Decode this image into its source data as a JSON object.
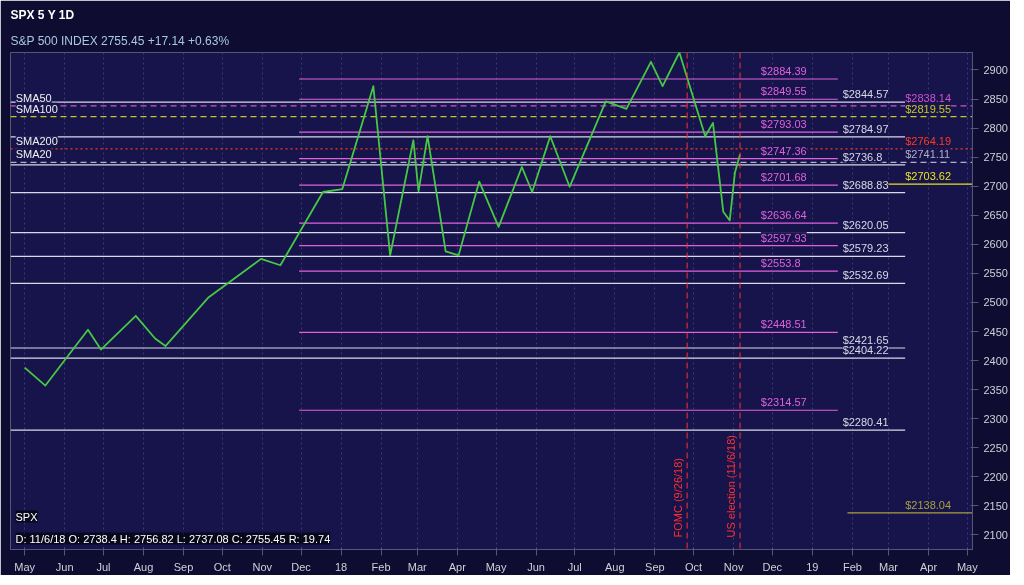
{
  "chart_data": {
    "type": "line",
    "title": "SPX 5 Y 1D",
    "subtitle": "S&P 500 INDEX  2755.45  +17.14  +0.63%",
    "annotations": [
      "D: 11/6/18 O: 2738.4 H: 2756.82 L: 2737.08 C: 2755.45 R: 19.74",
      {
        "text": "SMA50",
        "x": "2017-04-24",
        "y": 2838.14
      },
      {
        "text": "SMA100",
        "x": "2017-04-24",
        "y": 2819.55
      },
      {
        "text": "SMA200",
        "x": "2017-04-24",
        "y": 2764.19
      },
      {
        "text": "SMA20",
        "x": "2017-04-24",
        "y": 2741.11
      },
      "SPX"
    ],
    "series": [
      {
        "name": null,
        "color": "#46c846",
        "x": [
          "2017-05-01",
          "2017-05-17",
          "2017-06-19",
          "2017-06-29",
          "2017-07-26",
          "2017-08-10",
          "2017-08-18",
          "2017-09-20",
          "2017-10-31",
          "2017-11-15",
          "2017-12-18",
          "2018-01-02",
          "2018-01-26",
          "2018-02-08",
          "2018-02-26",
          "2018-03-02",
          "2018-03-09",
          "2018-03-23",
          "2018-04-02",
          "2018-04-18",
          "2018-05-03",
          "2018-05-21",
          "2018-05-29",
          "2018-06-12",
          "2018-06-27",
          "2018-07-25",
          "2018-08-10",
          "2018-08-29",
          "2018-09-07",
          "2018-09-20",
          "2018-10-10",
          "2018-10-16",
          "2018-10-24",
          "2018-10-29",
          "2018-11-02",
          "2018-11-06"
        ],
        "values": [
          2388,
          2357,
          2453,
          2419,
          2477,
          2438,
          2425,
          2508,
          2575,
          2564,
          2690,
          2695,
          2872,
          2581,
          2779,
          2691,
          2786,
          2588,
          2581,
          2708,
          2630,
          2733,
          2690,
          2786,
          2699,
          2846,
          2833,
          2914,
          2872,
          2930,
          2786,
          2809,
          2656,
          2641,
          2723,
          2755
        ]
      }
    ],
    "xlim": [
      "2017-04-20",
      "2019-05-05"
    ],
    "xticks": [
      {
        "value": "2017-05-01",
        "label": "May"
      },
      {
        "value": "2017-06-01",
        "label": "Jun"
      },
      {
        "value": "2017-07-01",
        "label": "Jul"
      },
      {
        "value": "2017-08-01",
        "label": "Aug"
      },
      {
        "value": "2017-09-01",
        "label": "Sep"
      },
      {
        "value": "2017-10-01",
        "label": "Oct"
      },
      {
        "value": "2017-11-01",
        "label": "Nov"
      },
      {
        "value": "2017-12-01",
        "label": "Dec"
      },
      {
        "value": "2018-01-01",
        "label": "18"
      },
      {
        "value": "2018-02-01",
        "label": "Feb"
      },
      {
        "value": "2018-03-01",
        "label": "Mar"
      },
      {
        "value": "2018-04-01",
        "label": "Apr"
      },
      {
        "value": "2018-05-01",
        "label": "May"
      },
      {
        "value": "2018-06-01",
        "label": "Jun"
      },
      {
        "value": "2018-07-01",
        "label": "Jul"
      },
      {
        "value": "2018-08-01",
        "label": "Aug"
      },
      {
        "value": "2018-09-01",
        "label": "Sep"
      },
      {
        "value": "2018-10-01",
        "label": "Oct"
      },
      {
        "value": "2018-11-01",
        "label": "Nov"
      },
      {
        "value": "2018-12-01",
        "label": "Dec"
      },
      {
        "value": "2019-01-01",
        "label": "19"
      },
      {
        "value": "2019-02-01",
        "label": "Feb"
      },
      {
        "value": "2019-03-01",
        "label": "Mar"
      },
      {
        "value": "2019-04-01",
        "label": "Apr"
      },
      {
        "value": "2019-05-01",
        "label": "May"
      }
    ],
    "ylim": [
      2075,
      2930
    ],
    "yticks": [
      2100,
      2150,
      2200,
      2250,
      2300,
      2350,
      2400,
      2450,
      2500,
      2550,
      2600,
      2650,
      2700,
      2750,
      2800,
      2850,
      2900
    ],
    "grid": "x",
    "ref_lines": [
      {
        "axis": "y",
        "value": 2884.39,
        "label": "$2884.39",
        "color": "#e060e0"
      },
      {
        "axis": "y",
        "value": 2849.55,
        "label": "$2849.55",
        "color": "#e060e0"
      },
      {
        "axis": "y",
        "value": 2793.03,
        "label": "$2793.03",
        "color": "#e060e0"
      },
      {
        "axis": "y",
        "value": 2747.36,
        "label": "$2747.36",
        "color": "#e060e0"
      },
      {
        "axis": "y",
        "value": 2701.68,
        "label": "$2701.68",
        "color": "#e060e0"
      },
      {
        "axis": "y",
        "value": 2636.64,
        "label": "$2636.64",
        "color": "#e060e0"
      },
      {
        "axis": "y",
        "value": 2597.93,
        "label": "$2597.93",
        "color": "#e060e0"
      },
      {
        "axis": "y",
        "value": 2553.8,
        "label": "$2553.8",
        "color": "#e060e0"
      },
      {
        "axis": "y",
        "value": 2448.51,
        "label": "$2448.51",
        "color": "#e060e0"
      },
      {
        "axis": "y",
        "value": 2314.57,
        "label": "$2314.57",
        "color": "#e060e0"
      },
      {
        "axis": "y",
        "value": 2844.57,
        "label": "$2844.57",
        "color": "#d8d8e8"
      },
      {
        "axis": "y",
        "value": 2784.97,
        "label": "$2784.97",
        "color": "#d8d8e8"
      },
      {
        "axis": "y",
        "value": 2736.8,
        "label": "$2736.8",
        "color": "#d8d8e8"
      },
      {
        "axis": "y",
        "value": 2688.83,
        "label": "$2688.83",
        "color": "#d8d8e8"
      },
      {
        "axis": "y",
        "value": 2620.05,
        "label": "$2620.05",
        "color": "#d8d8e8"
      },
      {
        "axis": "y",
        "value": 2579.23,
        "label": "$2579.23",
        "color": "#d8d8e8"
      },
      {
        "axis": "y",
        "value": 2532.69,
        "label": "$2532.69",
        "color": "#d8d8e8"
      },
      {
        "axis": "y",
        "value": 2421.65,
        "label": "$2421.65",
        "color": "#d8d8e8"
      },
      {
        "axis": "y",
        "value": 2404.22,
        "label": "$2404.22",
        "color": "#d8d8e8"
      },
      {
        "axis": "y",
        "value": 2280.41,
        "label": "$2280.41",
        "color": "#d8d8e8"
      },
      {
        "axis": "y",
        "value": 2838.14,
        "label": "$2838.14",
        "color": "#d050d0",
        "line_style": "dashed"
      },
      {
        "axis": "y",
        "value": 2819.55,
        "label": "$2819.55",
        "color": "#c8c820",
        "line_style": "dashed"
      },
      {
        "axis": "y",
        "value": 2764.19,
        "label": "$2764.19",
        "color": "#ff3b1f",
        "line_style": "dotted"
      },
      {
        "axis": "y",
        "value": 2741.11,
        "label": "$2741.11",
        "color": "#b0b0c8",
        "line_style": "dashed"
      },
      {
        "axis": "y",
        "value": 2703.62,
        "label": "$2703.62",
        "color": "#e8e020"
      },
      {
        "axis": "y",
        "value": 2138.04,
        "label": "$2138.04",
        "color": "#a8a040"
      },
      {
        "axis": "x",
        "value": "2018-09-26",
        "label": "FOMC (9/26/18)",
        "color": "#ff3030",
        "line_style": "dashed"
      },
      {
        "axis": "x",
        "value": "2018-11-06",
        "label": "US election (11/6/18)",
        "color": "#ff3030",
        "line_style": "dashed"
      }
    ]
  }
}
